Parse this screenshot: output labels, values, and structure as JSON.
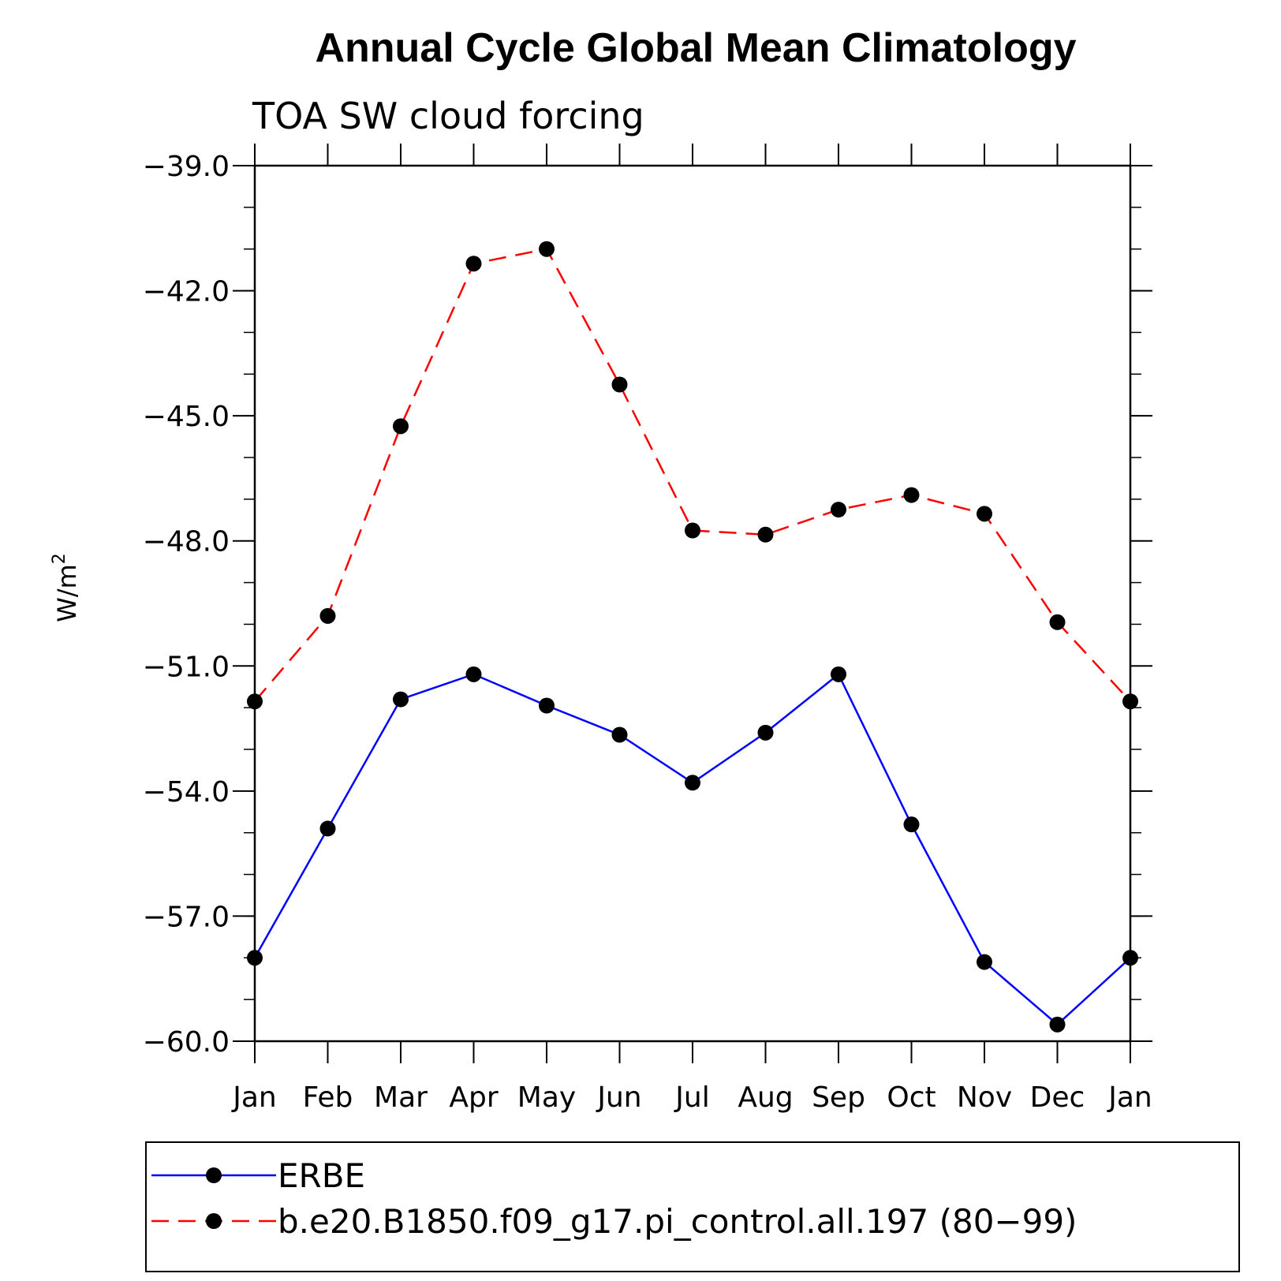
{
  "chart_data": {
    "type": "line",
    "title": "Annual Cycle Global Mean Climatology",
    "subtitle": "TOA SW cloud forcing",
    "ylabel": "W/m²",
    "ylabel_base": "W/m",
    "ylabel_sup": "2",
    "xlabel": "",
    "categories": [
      "Jan",
      "Feb",
      "Mar",
      "Apr",
      "May",
      "Jun",
      "Jul",
      "Aug",
      "Sep",
      "Oct",
      "Nov",
      "Dec",
      "Jan"
    ],
    "ylim": [
      -60.0,
      -39.0
    ],
    "yticks": [
      -39.0,
      -42.0,
      -45.0,
      -48.0,
      -51.0,
      -54.0,
      -57.0,
      -60.0
    ],
    "ytick_labels": [
      "−39.0",
      "−42.0",
      "−45.0",
      "−48.0",
      "−51.0",
      "−54.0",
      "−57.0",
      "−60.0"
    ],
    "yminor_step": 1.0,
    "grid": false,
    "legend_position": "bottom",
    "series": [
      {
        "name": "ERBE",
        "color": "#0000ff",
        "dash": "solid",
        "marker": "filled-circle",
        "values": [
          -58.0,
          -54.9,
          -51.8,
          -51.2,
          -51.95,
          -52.65,
          -53.8,
          -52.6,
          -51.2,
          -54.8,
          -58.1,
          -59.6,
          -58.0
        ]
      },
      {
        "name": "b.e20.B1850.f09_g17.pi_control.all.197 (80−99)",
        "color": "#ff0000",
        "dash": "dashed",
        "marker": "filled-circle",
        "values": [
          -51.85,
          -49.8,
          -45.25,
          -41.35,
          -41.0,
          -44.25,
          -47.75,
          -47.85,
          -47.25,
          -46.9,
          -47.35,
          -49.95,
          -51.85
        ]
      }
    ]
  }
}
